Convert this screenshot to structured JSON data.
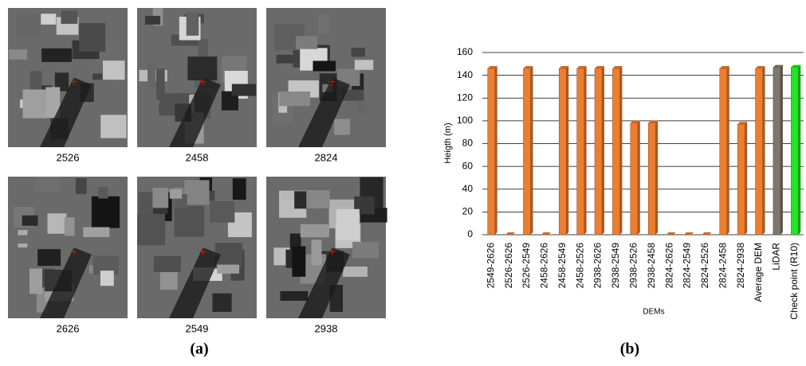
{
  "panel_a": {
    "images": [
      {
        "label": "2526"
      },
      {
        "label": "2458"
      },
      {
        "label": "2824"
      },
      {
        "label": "2626"
      },
      {
        "label": "2549"
      },
      {
        "label": "2938"
      }
    ],
    "label": "(a)"
  },
  "chart_data": {
    "type": "bar",
    "panel_label": "(b)",
    "ylabel": "Heigth (m)",
    "xlabel": "DEMs",
    "categories": [
      "2549-2626",
      "2526-2626",
      "2526-2549",
      "2458-2626",
      "2458-2549",
      "2458-2526",
      "2938-2626",
      "2938-2549",
      "2938-2526",
      "2938-2458",
      "2824-2626",
      "2824-2549",
      "2824-2526",
      "2824-2458",
      "2824-2938",
      "Average DEM",
      "LiDAR",
      "Check point (R10)"
    ],
    "values": [
      146,
      0,
      146,
      0,
      146,
      146,
      146,
      146,
      98,
      98,
      0,
      0,
      0,
      146,
      97,
      146,
      147,
      147
    ],
    "colors": [
      "#ed7d31",
      "#ed7d31",
      "#ed7d31",
      "#ed7d31",
      "#ed7d31",
      "#ed7d31",
      "#ed7d31",
      "#ed7d31",
      "#ed7d31",
      "#ed7d31",
      "#ed7d31",
      "#ed7d31",
      "#ed7d31",
      "#ed7d31",
      "#ed7d31",
      "#ed7d31",
      "#7f776d",
      "#22e622"
    ],
    "ylim": [
      0,
      160
    ],
    "yticks": [
      0,
      20,
      40,
      60,
      80,
      100,
      120,
      140,
      160
    ],
    "grid": true
  }
}
